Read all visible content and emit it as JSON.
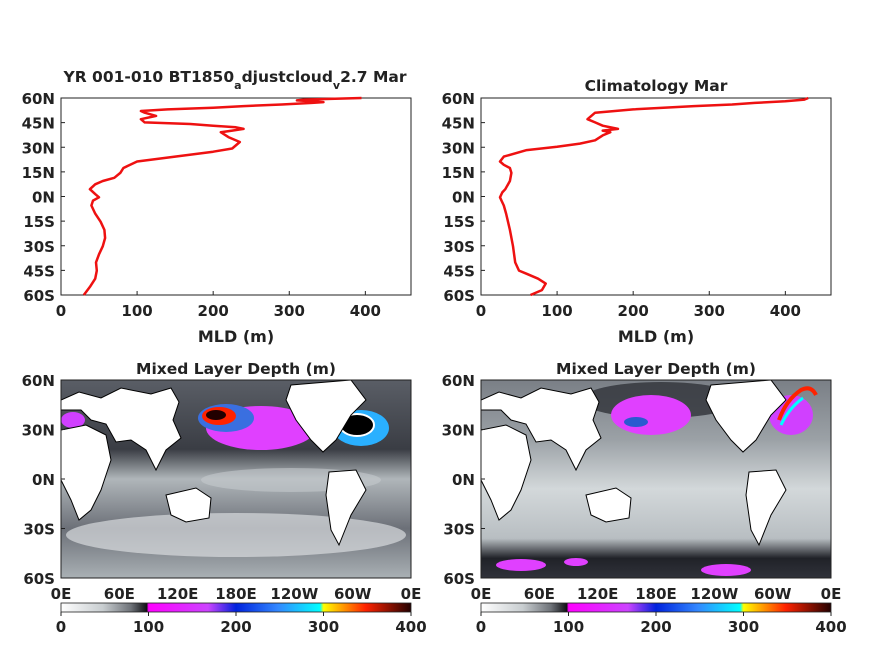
{
  "chart_data": [
    {
      "type": "line",
      "title_parts": [
        "YR 001-010 BT1850",
        "a",
        "djustcloud",
        "v",
        "2.7 Mar"
      ],
      "xlabel": "MLD (m)",
      "ylabel": "",
      "xlim": [
        0,
        460
      ],
      "ylim": [
        -60,
        61
      ],
      "xticks": [
        "0",
        "100",
        "200",
        "300",
        "400"
      ],
      "yticks": [
        "60N",
        "45N",
        "30N",
        "15N",
        "0N",
        "15S",
        "30S",
        "45S",
        "60S"
      ],
      "color": "#ee1111",
      "series": [
        {
          "x": [
            30,
            38,
            45,
            47,
            46,
            50,
            55,
            58,
            57,
            52,
            45,
            40,
            42,
            50,
            45,
            38,
            45,
            55,
            70,
            78,
            82,
            100,
            150,
            200,
            225,
            235,
            220,
            210,
            225,
            240,
            230,
            200,
            170,
            110,
            105,
            125,
            110,
            105,
            140,
            200,
            240,
            290,
            330,
            345,
            330,
            310,
            320,
            360,
            395
          ],
          "y": [
            -60,
            -55,
            -50,
            -45,
            -40,
            -35,
            -30,
            -25,
            -20,
            -15,
            -10,
            -5,
            -2,
            0,
            2,
            5,
            8,
            10,
            12,
            15,
            18,
            22,
            25,
            28,
            30,
            34,
            37,
            40,
            41,
            42,
            43,
            44,
            45,
            46,
            48,
            50,
            52,
            53,
            54,
            55,
            56,
            57,
            58,
            58.5,
            59,
            59.5,
            60,
            60.5,
            61
          ]
        }
      ]
    },
    {
      "type": "line",
      "title_parts": [
        "Climatology Mar"
      ],
      "xlabel": "MLD (m)",
      "ylabel": "",
      "xlim": [
        0,
        460
      ],
      "ylim": [
        -60,
        61
      ],
      "xticks": [
        "0",
        "100",
        "200",
        "300",
        "400"
      ],
      "yticks": [
        "60N",
        "45N",
        "30N",
        "15N",
        "0N",
        "15S",
        "30S",
        "45S",
        "60S"
      ],
      "color": "#ee1111",
      "series": [
        {
          "x": [
            65,
            80,
            85,
            75,
            60,
            50,
            45,
            42,
            38,
            33,
            30,
            27,
            25,
            28,
            32,
            38,
            40,
            38,
            30,
            25,
            30,
            60,
            100,
            130,
            150,
            160,
            170,
            160,
            180,
            160,
            150,
            140,
            145,
            150,
            200,
            280,
            330,
            360,
            400,
            425,
            430
          ],
          "y": [
            -60,
            -57,
            -53,
            -50,
            -47,
            -45,
            -40,
            -30,
            -20,
            -10,
            -5,
            -2,
            0,
            3,
            5,
            10,
            15,
            18,
            20,
            22,
            25,
            29,
            31,
            33,
            35,
            38,
            40,
            41,
            42,
            44,
            46,
            48,
            50,
            52,
            54,
            56,
            57,
            58,
            59,
            60,
            61
          ]
        }
      ]
    },
    {
      "type": "heatmap",
      "title": "Mixed Layer Depth (m)",
      "xticks": [
        "0E",
        "60E",
        "120E",
        "180E",
        "120W",
        "60W",
        "0E"
      ],
      "yticks": [
        "60N",
        "30N",
        "0N",
        "30S",
        "60S"
      ],
      "colorbar_ticks": [
        "0",
        "100",
        "200",
        "300",
        "400"
      ],
      "zlim": [
        0,
        400
      ],
      "colormap": [
        "#ffffff",
        "#c8cdd0",
        "#6e7278",
        "#101015",
        "#ff00ff",
        "#0022dd",
        "#00ffff",
        "#ffff00",
        "#ff2200",
        "#220000"
      ]
    },
    {
      "type": "heatmap",
      "title": "Mixed Layer Depth (m)",
      "xticks": [
        "0E",
        "60E",
        "120E",
        "180E",
        "120W",
        "60W",
        "0E"
      ],
      "yticks": [
        "60N",
        "30N",
        "0N",
        "30S",
        "60S"
      ],
      "colorbar_ticks": [
        "0",
        "100",
        "200",
        "300",
        "400"
      ],
      "zlim": [
        0,
        400
      ],
      "colormap": [
        "#ffffff",
        "#c8cdd0",
        "#6e7278",
        "#101015",
        "#ff00ff",
        "#0022dd",
        "#00ffff",
        "#ffff00",
        "#ff2200",
        "#220000"
      ]
    }
  ]
}
